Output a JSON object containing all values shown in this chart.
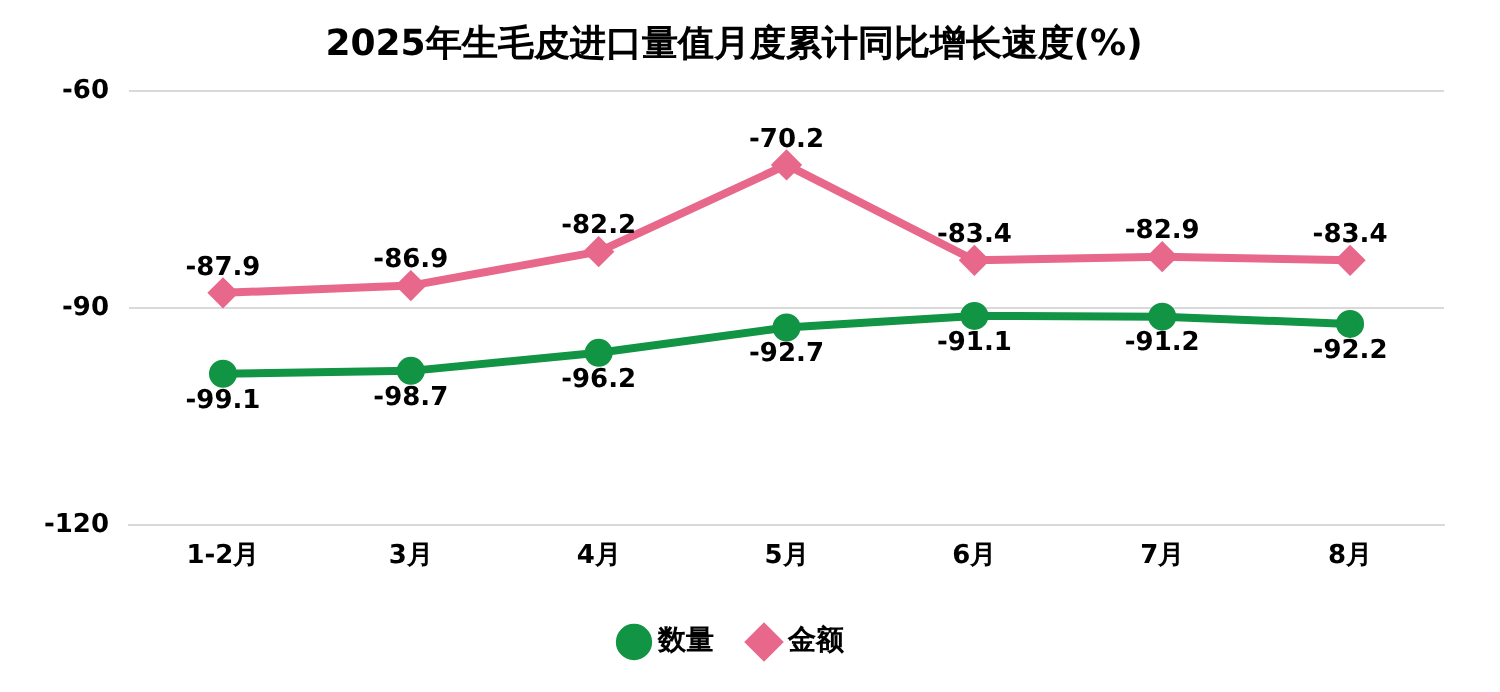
{
  "chart_data": {
    "type": "line",
    "title": "2025年生毛皮进口量值月度累计同比增长速度(%)",
    "categories": [
      "1-2月",
      "3月",
      "4月",
      "5月",
      "6月",
      "7月",
      "8月"
    ],
    "series": [
      {
        "name": "数量",
        "color": "#119443",
        "values": [
          -99.1,
          -98.7,
          -96.2,
          -92.7,
          -91.1,
          -91.2,
          -92.2
        ],
        "marker": "circle"
      },
      {
        "name": "金额",
        "color": "#e8688c",
        "values": [
          -87.9,
          -86.9,
          -82.2,
          -70.2,
          -83.4,
          -82.9,
          -83.4
        ],
        "marker": "diamond"
      }
    ],
    "ylim": [
      -120,
      -60
    ],
    "yticks": [
      -120,
      -90,
      -60
    ],
    "grid": "y",
    "legend": "bottom",
    "data_labels": true,
    "line_style": "solid"
  }
}
